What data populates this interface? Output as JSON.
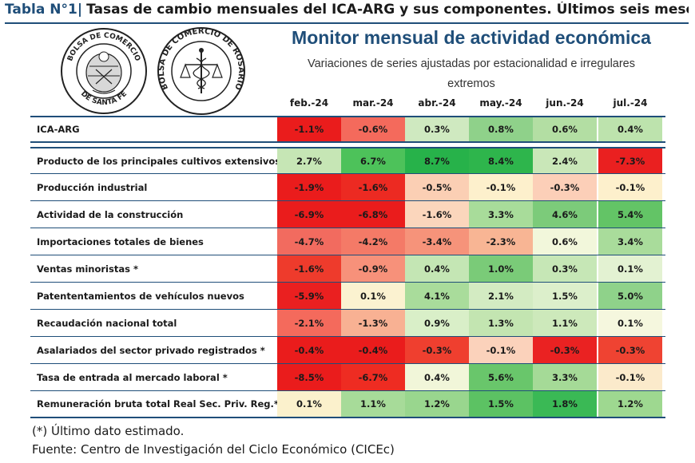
{
  "header": {
    "code": "Tabla N°1|",
    "title": "Tasas de cambio mensuales del ICA-ARG y sus componentes. Últimos seis meses."
  },
  "seals": {
    "left": {
      "top_text": "BOLSA DE COMERCIO",
      "bottom_text": "DE SANTA FE"
    },
    "right": {
      "text": "BOLSA DE COMERCIO DE ROSARIO"
    }
  },
  "monitor": {
    "title": "Monitor mensual de actividad económica",
    "subtitle_line1": "Variaciones de series ajustadas por estacionalidad e irregulares",
    "subtitle_line2": "extremos"
  },
  "table": {
    "columns": [
      "feb.-24",
      "mar.-24",
      "abr.-24",
      "may.-24",
      "jun.-24",
      "jul.-24"
    ],
    "rows": [
      {
        "label": "ICA-ARG",
        "values": [
          "-1.1%",
          "-0.6%",
          "0.3%",
          "0.8%",
          "0.6%",
          "0.4%"
        ],
        "colors": [
          "#ea1c1c",
          "#f46a5c",
          "#cfe9c0",
          "#8fd18a",
          "#b0ddа0",
          "#bde3ad"
        ]
      },
      {
        "label": "Producto de los principales cultivos extensivos",
        "values": [
          "2.7%",
          "6.7%",
          "8.7%",
          "8.4%",
          "2.4%",
          "-7.3%"
        ],
        "colors": [
          "#c6e6b5",
          "#4dc25a",
          "#27b24a",
          "#2eb54c",
          "#c9e7b8",
          "#ea2020"
        ]
      },
      {
        "label": "Producción industrial",
        "values": [
          "-1.9%",
          "-1.6%",
          "-0.5%",
          "-0.1%",
          "-0.3%",
          "-0.1%"
        ],
        "colors": [
          "#ea1c1c",
          "#ec2a22",
          "#fbcfb4",
          "#fdf0cc",
          "#fccfb8",
          "#fdf0cc"
        ]
      },
      {
        "label": "Actividad de la construcción",
        "values": [
          "-6.9%",
          "-6.8%",
          "-1.6%",
          "3.3%",
          "4.6%",
          "5.4%"
        ],
        "colors": [
          "#ea1c1c",
          "#ea1c1c",
          "#fbd6bc",
          "#a8dc9a",
          "#7ccb7a",
          "#63c466"
        ]
      },
      {
        "label": "Importaciones totales de bienes",
        "values": [
          "-4.7%",
          "-4.2%",
          "-3.4%",
          "-2.3%",
          "0.6%",
          "3.4%"
        ],
        "colors": [
          "#f26b5f",
          "#f47a67",
          "#f6937a",
          "#f8b594",
          "#f2f7db",
          "#a9dc9b"
        ]
      },
      {
        "label": "Ventas minoristas *",
        "values": [
          "-1.6%",
          "-0.9%",
          "0.4%",
          "1.0%",
          "0.3%",
          "0.1%"
        ],
        "colors": [
          "#ee3b2c",
          "#f7917a",
          "#c4e6b4",
          "#7acb78",
          "#c6e7b6",
          "#e3f2d2"
        ]
      },
      {
        "label": "Patententamientos de vehículos nuevos",
        "values": [
          "-5.9%",
          "0.1%",
          "4.1%",
          "2.1%",
          "1.5%",
          "5.0%"
        ],
        "colors": [
          "#ea2020",
          "#fbf2d0",
          "#a9dc9b",
          "#d3ebc2",
          "#dcefcb",
          "#8fd28a"
        ]
      },
      {
        "label": "Recaudación nacional total",
        "values": [
          "-2.1%",
          "-1.3%",
          "0.9%",
          "1.3%",
          "1.1%",
          "0.1%"
        ],
        "colors": [
          "#f46a5c",
          "#f8b193",
          "#d9efc8",
          "#c3e5b1",
          "#cde9bb",
          "#f5f7de"
        ]
      },
      {
        "label": "Asalariados del sector privado registrados *",
        "values": [
          "-0.4%",
          "-0.4%",
          "-0.3%",
          "-0.1%",
          "-0.3%",
          "-0.3%"
        ],
        "colors": [
          "#ea1c1c",
          "#ea1c1c",
          "#ef3f2f",
          "#fbd2bb",
          "#ea2222",
          "#ef4332"
        ]
      },
      {
        "label": "Tasa de entrada al mercado laboral *",
        "values": [
          "-8.5%",
          "-6.7%",
          "0.4%",
          "5.6%",
          "3.3%",
          "-0.1%"
        ],
        "colors": [
          "#ea1c1c",
          "#ee2c22",
          "#f1f6d9",
          "#69c66b",
          "#a5da97",
          "#fbeacb"
        ]
      },
      {
        "label": "Remuneración bruta total Real Sec. Priv. Reg.*",
        "values": [
          "0.1%",
          "1.1%",
          "1.2%",
          "1.5%",
          "1.8%",
          "1.2%"
        ],
        "colors": [
          "#fbf1cc",
          "#a7db99",
          "#99d68e",
          "#5cc263",
          "#3ab955",
          "#9ed890"
        ]
      }
    ]
  },
  "footnotes": {
    "note": "(*) Último dato estimado.",
    "source": "Fuente: Centro de Investigación del Ciclo Económico (CICEc)"
  }
}
